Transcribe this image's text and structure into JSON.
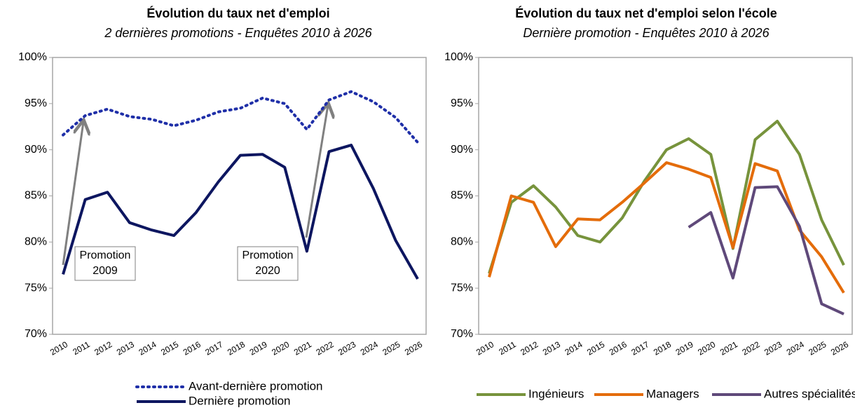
{
  "chart_data": [
    {
      "type": "line",
      "title": "Évolution du taux net d'emploi",
      "subtitle": "2 dernières promotions - Enquêtes 2010 à 2026",
      "categories": [
        "2010",
        "2011",
        "2012",
        "2013",
        "2014",
        "2015",
        "2016",
        "2017",
        "2018",
        "2019",
        "2020",
        "2021",
        "2022",
        "2023",
        "2024",
        "2025",
        "2026"
      ],
      "series": [
        {
          "name": "Avant-dernière promotion",
          "color": "#1f2fa8",
          "line_style": "dotted",
          "values": [
            91.6,
            93.7,
            94.4,
            93.6,
            93.3,
            92.6,
            93.2,
            94.1,
            94.5,
            95.6,
            95.0,
            92.2,
            95.4,
            96.3,
            95.2,
            93.5,
            90.8
          ]
        },
        {
          "name": "Dernière promotion",
          "color": "#0d1660",
          "line_style": "solid",
          "values": [
            76.5,
            84.6,
            85.4,
            82.1,
            81.3,
            80.7,
            83.2,
            86.5,
            89.4,
            89.5,
            88.1,
            79.0,
            89.8,
            90.5,
            85.8,
            80.2,
            76.0
          ]
        }
      ],
      "ylim": [
        70,
        100
      ],
      "yticks": [
        {
          "value": 70,
          "label": "70%"
        },
        {
          "value": 75,
          "label": "75%"
        },
        {
          "value": 80,
          "label": "80%"
        },
        {
          "value": 85,
          "label": "85%"
        },
        {
          "value": 90,
          "label": "90%"
        },
        {
          "value": 95,
          "label": "95%"
        },
        {
          "value": 100,
          "label": "100%"
        }
      ],
      "legend": "bottom-stacked",
      "annotations": [
        {
          "lines": [
            "Promotion",
            "2009"
          ]
        },
        {
          "lines": [
            "Promotion",
            "2020"
          ]
        }
      ]
    },
    {
      "type": "line",
      "title": "Évolution du taux net d'emploi selon l'école",
      "subtitle": "Dernière promotion - Enquêtes 2010 à 2026",
      "categories": [
        "2010",
        "2011",
        "2012",
        "2013",
        "2014",
        "2015",
        "2016",
        "2017",
        "2018",
        "2019",
        "2020",
        "2021",
        "2022",
        "2023",
        "2024",
        "2025",
        "2026"
      ],
      "series": [
        {
          "name": "Ingénieurs",
          "color": "#77933c",
          "line_style": "solid",
          "values": [
            76.6,
            84.3,
            86.1,
            83.8,
            80.7,
            80.0,
            82.6,
            86.6,
            90.0,
            91.2,
            89.5,
            79.3,
            91.1,
            93.1,
            89.5,
            82.4,
            77.5
          ]
        },
        {
          "name": "Managers",
          "color": "#e46c0a",
          "line_style": "solid",
          "values": [
            76.2,
            85.0,
            84.3,
            79.5,
            82.5,
            82.4,
            84.3,
            86.4,
            88.6,
            87.9,
            87.0,
            79.4,
            88.5,
            87.7,
            81.3,
            78.4,
            74.5
          ]
        },
        {
          "name": "Autres spécialités",
          "color": "#5f497a",
          "line_style": "solid",
          "values": [
            null,
            null,
            null,
            null,
            null,
            null,
            null,
            null,
            null,
            81.6,
            83.2,
            76.1,
            85.9,
            86.0,
            81.7,
            73.3,
            72.2
          ]
        }
      ],
      "ylim": [
        70,
        100
      ],
      "yticks": [
        {
          "value": 70,
          "label": "70%"
        },
        {
          "value": 75,
          "label": "75%"
        },
        {
          "value": 80,
          "label": "80%"
        },
        {
          "value": 85,
          "label": "85%"
        },
        {
          "value": 90,
          "label": "90%"
        },
        {
          "value": 95,
          "label": "95%"
        },
        {
          "value": 100,
          "label": "100%"
        }
      ],
      "legend": "bottom-row"
    }
  ]
}
